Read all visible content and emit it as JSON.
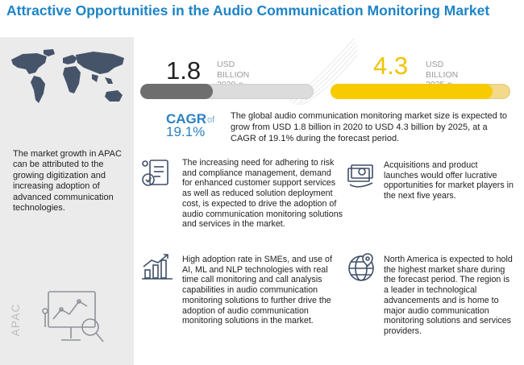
{
  "title": "Attractive Opportunities in the Audio Communication Monitoring Market",
  "left_panel": {
    "text": "The market growth in APAC can be attributed to the growing digitization and increasing adoption of advanced communication technologies.",
    "region_label": "APAC"
  },
  "metrics": [
    {
      "value": "1.8",
      "unit": "USD BILLION",
      "period": "2020-e",
      "bar_fraction": 0.42,
      "color": "#6e6e6e"
    },
    {
      "value": "4.3",
      "unit": "USD BILLION",
      "period": "2025-p",
      "bar_fraction": 0.9,
      "color": "#f7cb00"
    }
  ],
  "cagr": {
    "label": "CAGR",
    "of": "of",
    "value": "19.1%"
  },
  "summary": "The global audio communication monitoring market size is expected to grow from USD 1.8 billion in 2020 to USD 4.3 billion by 2025, at a CAGR of 19.1% during the forecast period.",
  "cards": [
    {
      "icon": "compliance-icon",
      "text": "The increasing need for adhering to risk and compliance management, demand for enhanced customer support services as well as reduced solution deployment cost, is expected to drive the adoption of audio communication monitoring solutions and services in the market."
    },
    {
      "icon": "money-icon",
      "text": "Acquisitions and product launches would offer lucrative opportunities for market players in the next five years."
    },
    {
      "icon": "growth-chart-icon",
      "text": "High adoption rate in SMEs, and use of AI, ML and NLP technologies with real time call monitoring and call analysis capabilities in audio communication monitoring solutions to further drive the adoption of audio communication monitoring solutions in the market."
    },
    {
      "icon": "globe-location-icon",
      "text": "North America is expected to hold the highest market share during the forecast period. The region is a leader in technological advancements and is home to major audio communication monitoring solutions and services providers."
    }
  ],
  "colors": {
    "title": "#1d84c6",
    "accent_blue": "#2b80c2",
    "accent_yellow": "#f7cb00",
    "panel_gray": "#ebebeb"
  }
}
